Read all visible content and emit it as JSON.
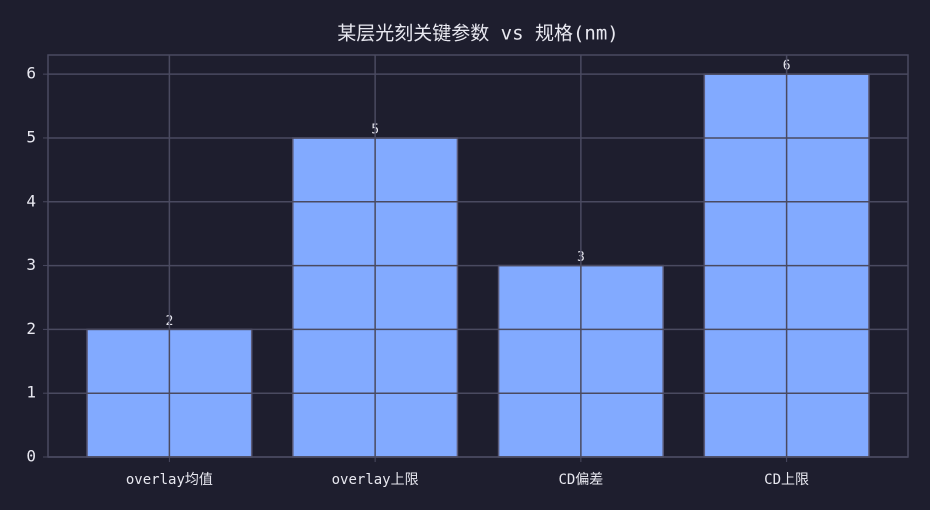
{
  "chart_data": {
    "type": "bar",
    "title": "某层光刻关键参数 vs 规格(nm)",
    "categories": [
      "overlay均值",
      "overlay上限",
      "CD偏差",
      "CD上限"
    ],
    "values": [
      2,
      5,
      3,
      6
    ],
    "color": "#82aaff",
    "ylim": [
      0,
      6.3
    ],
    "yticks": [
      0,
      1,
      2,
      3,
      4,
      5,
      6
    ],
    "grid": true
  }
}
